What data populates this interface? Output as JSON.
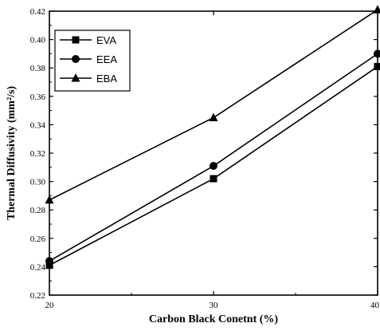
{
  "chart_data": {
    "type": "line",
    "xlabel": "Carbon Black Conetnt (%)",
    "ylabel": "Thermal Diffusivity (mm²/s)",
    "x": [
      20,
      30,
      40
    ],
    "xlim": [
      20,
      40
    ],
    "ylim": [
      0.22,
      0.42
    ],
    "xticks": [
      "20",
      "30",
      "40"
    ],
    "yticks": [
      "0.22",
      "0.24",
      "0.26",
      "0.28",
      "0.30",
      "0.32",
      "0.34",
      "0.36",
      "0.38",
      "0.40",
      "0.42"
    ],
    "series": [
      {
        "name": "EVA",
        "marker": "square",
        "values": [
          0.241,
          0.302,
          0.381
        ]
      },
      {
        "name": "EEA",
        "marker": "circle",
        "values": [
          0.244,
          0.311,
          0.39
        ]
      },
      {
        "name": "EBA",
        "marker": "triangle",
        "values": [
          0.287,
          0.345,
          0.421
        ]
      }
    ],
    "legend_position": "top-left",
    "grid": false,
    "colors": {
      "line": "#000000",
      "background": "#ffffff"
    }
  }
}
